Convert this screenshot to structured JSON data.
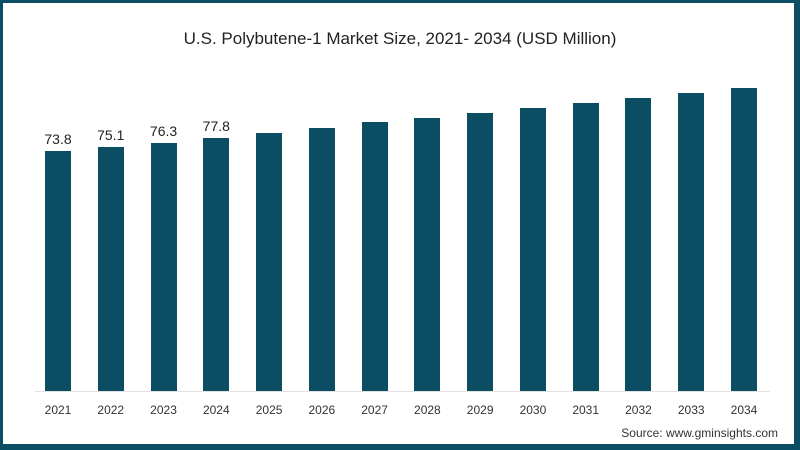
{
  "chart_data": {
    "type": "bar",
    "title": "U.S. Polybutene-1 Market Size, 2021- 2034 (USD Million)",
    "xlabel": "",
    "ylabel": "",
    "categories": [
      "2021",
      "2022",
      "2023",
      "2024",
      "2025",
      "2026",
      "2027",
      "2028",
      "2029",
      "2030",
      "2031",
      "2032",
      "2033",
      "2034"
    ],
    "values": [
      73.8,
      75.1,
      76.3,
      77.8,
      79.4,
      81.0,
      82.6,
      84.0,
      85.5,
      87.1,
      88.6,
      90.2,
      91.5,
      93.1
    ],
    "data_labels": [
      "73.8",
      "75.1",
      "76.3",
      "77.8",
      "",
      "",
      "",
      "",
      "",
      "",
      "",
      "",
      "",
      ""
    ],
    "ylim": [
      0,
      100
    ],
    "grid": false,
    "legend": null,
    "bar_color": "#0b4d63",
    "source": "Source: www.gminsights.com"
  },
  "frame_color": "#0b4d63"
}
